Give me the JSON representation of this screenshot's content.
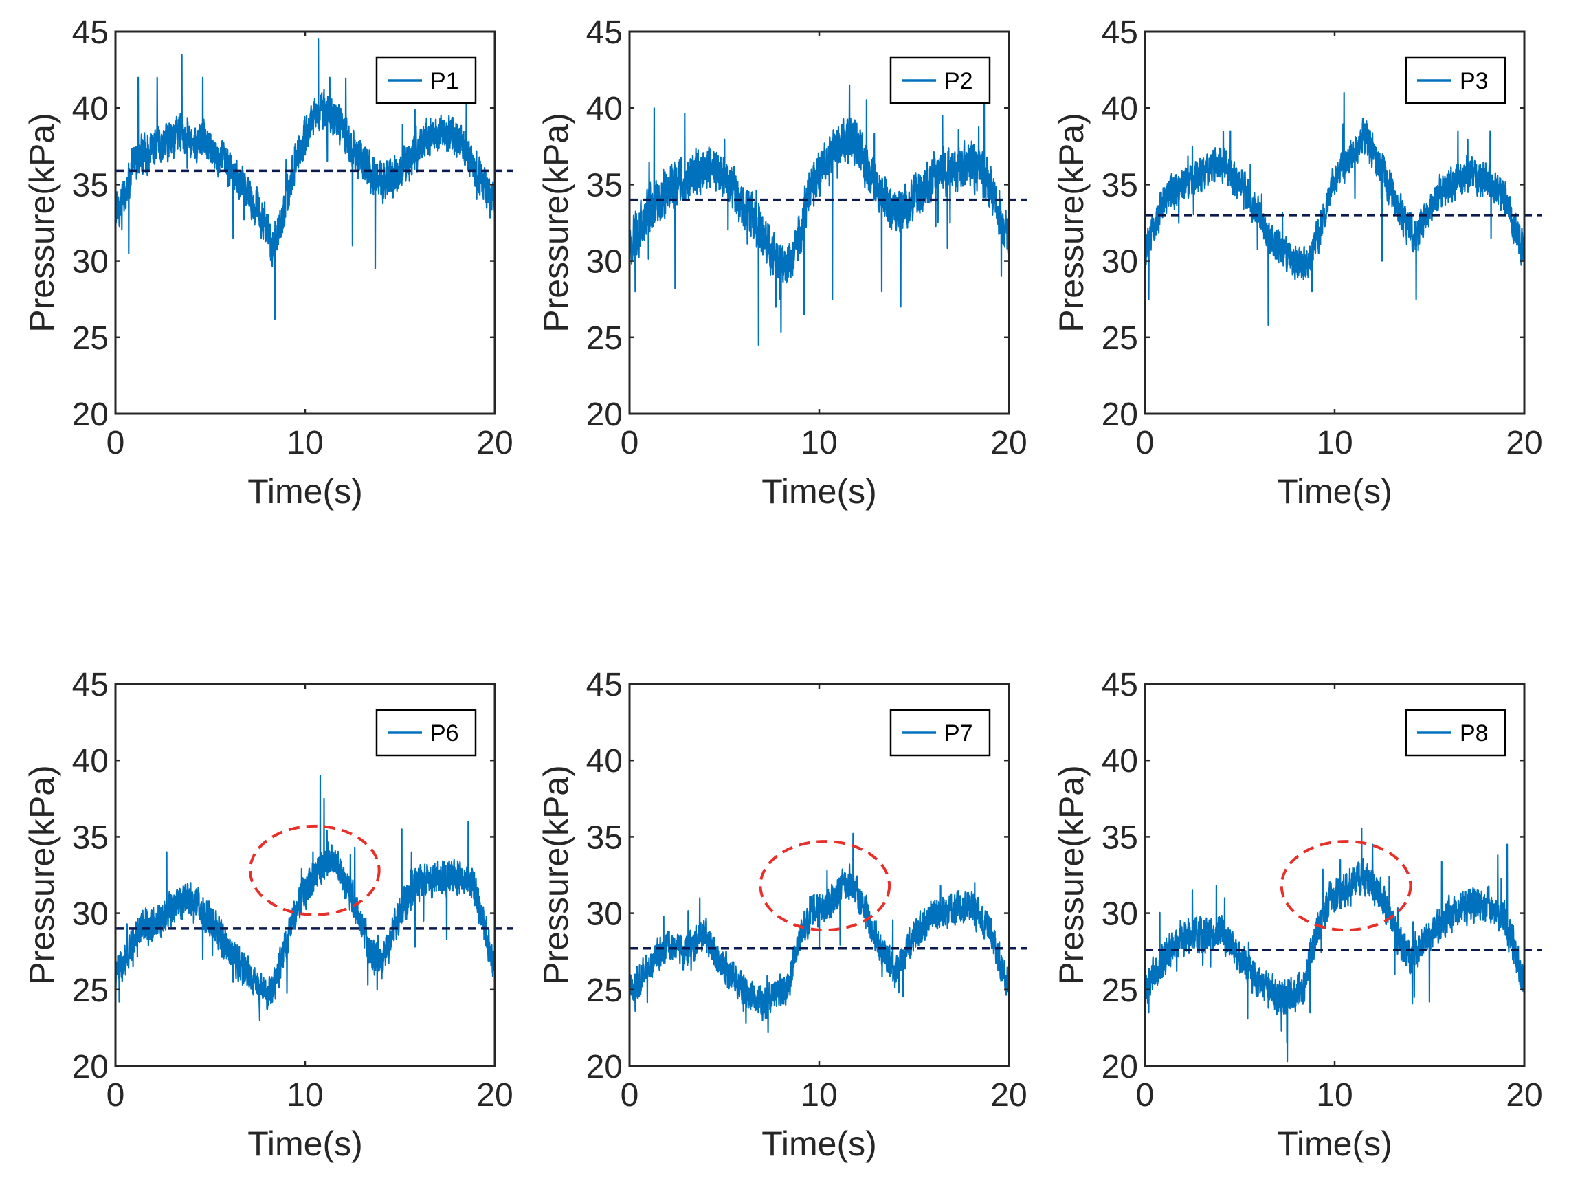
{
  "figure": {
    "background": "#ffffff"
  },
  "colors": {
    "signal": "#0072BD",
    "mean_line": "#0B1A4F",
    "highlight": "#E8302A",
    "axis": "#262626"
  },
  "chart_data": [
    {
      "type": "line",
      "id": "P1",
      "legend": "P1",
      "xlabel": "Time(s)",
      "ylabel": "Pressure(kPa)",
      "xlim": [
        0,
        20
      ],
      "ylim": [
        20,
        45
      ],
      "xticks": [
        0,
        10,
        20
      ],
      "yticks": [
        20,
        25,
        30,
        35,
        40,
        45
      ],
      "legend_position": "top-right",
      "mean_line": 35.9,
      "highlight": null,
      "trend": [
        [
          0,
          33
        ],
        [
          0.5,
          34.5
        ],
        [
          1,
          36.5
        ],
        [
          2,
          37.2
        ],
        [
          3,
          38
        ],
        [
          3.5,
          38.5
        ],
        [
          4,
          38
        ],
        [
          5,
          37.5
        ],
        [
          6,
          36
        ],
        [
          7,
          34.5
        ],
        [
          7.8,
          32.5
        ],
        [
          8.3,
          31
        ],
        [
          8.8,
          33
        ],
        [
          9.5,
          36.5
        ],
        [
          10.5,
          39.5
        ],
        [
          11.3,
          39.8
        ],
        [
          12,
          38.5
        ],
        [
          13,
          36.5
        ],
        [
          14,
          35
        ],
        [
          15,
          36
        ],
        [
          16,
          37.5
        ],
        [
          17,
          38.5
        ],
        [
          18,
          38
        ],
        [
          19,
          36
        ],
        [
          20,
          33.5
        ]
      ],
      "noise_amplitude": 1.7,
      "spikes": [
        [
          3.5,
          43.5
        ],
        [
          1.2,
          42
        ],
        [
          10.7,
          44.5
        ],
        [
          8.4,
          26.2
        ],
        [
          11.3,
          42
        ],
        [
          13.7,
          29.5
        ],
        [
          4.6,
          42
        ],
        [
          0.7,
          30.5
        ],
        [
          18.5,
          41
        ],
        [
          12.5,
          31
        ],
        [
          6.2,
          31.5
        ],
        [
          2.2,
          42
        ]
      ]
    },
    {
      "type": "line",
      "id": "P2",
      "legend": "P2",
      "xlabel": "Time(s)",
      "ylabel": "Pressure(kPa)",
      "xlim": [
        0,
        20
      ],
      "ylim": [
        20,
        45
      ],
      "xticks": [
        0,
        10,
        20
      ],
      "yticks": [
        20,
        25,
        30,
        35,
        40,
        45
      ],
      "legend_position": "top-right",
      "mean_line": 34,
      "highlight": null,
      "trend": [
        [
          0,
          31
        ],
        [
          0.5,
          32
        ],
        [
          1,
          33.5
        ],
        [
          2,
          34.5
        ],
        [
          3,
          35.5
        ],
        [
          4,
          36
        ],
        [
          5,
          35.5
        ],
        [
          6,
          33.5
        ],
        [
          7,
          32
        ],
        [
          7.5,
          30.5
        ],
        [
          8.2,
          29.5
        ],
        [
          8.8,
          31
        ],
        [
          9.5,
          34.5
        ],
        [
          10.5,
          37
        ],
        [
          11.5,
          38
        ],
        [
          12,
          37.5
        ],
        [
          13,
          35
        ],
        [
          14,
          33
        ],
        [
          15,
          34
        ],
        [
          16,
          35.5
        ],
        [
          17,
          36
        ],
        [
          18,
          36.5
        ],
        [
          19,
          35
        ],
        [
          20,
          31
        ]
      ],
      "noise_amplitude": 2.0,
      "spikes": [
        [
          6.8,
          24.5
        ],
        [
          1.3,
          40
        ],
        [
          10.7,
          27.5
        ],
        [
          11.6,
          41.5
        ],
        [
          18.7,
          40.5
        ],
        [
          14.3,
          27
        ],
        [
          9.2,
          26.5
        ],
        [
          0.3,
          28
        ],
        [
          2.4,
          28.2
        ],
        [
          16.5,
          39.5
        ],
        [
          13.3,
          28
        ],
        [
          19.6,
          29
        ]
      ]
    },
    {
      "type": "line",
      "id": "P3",
      "legend": "P3",
      "xlabel": "Time(s)",
      "ylabel": "Pressure(kPa)",
      "xlim": [
        0,
        20
      ],
      "ylim": [
        20,
        45
      ],
      "xticks": [
        0,
        10,
        20
      ],
      "yticks": [
        20,
        25,
        30,
        35,
        40,
        45
      ],
      "legend_position": "top-right",
      "mean_line": 33,
      "highlight": null,
      "trend": [
        [
          0,
          30.5
        ],
        [
          0.5,
          32.5
        ],
        [
          1,
          34
        ],
        [
          2,
          35
        ],
        [
          3,
          35.5
        ],
        [
          4,
          36.5
        ],
        [
          5,
          35
        ],
        [
          6,
          33
        ],
        [
          6.5,
          31.5
        ],
        [
          7.5,
          30.5
        ],
        [
          8.5,
          29.5
        ],
        [
          9.2,
          32
        ],
        [
          10,
          35.5
        ],
        [
          11,
          37
        ],
        [
          11.6,
          38.2
        ],
        [
          12.5,
          36
        ],
        [
          13.5,
          33
        ],
        [
          14.3,
          31.5
        ],
        [
          15,
          33.5
        ],
        [
          16,
          35
        ],
        [
          17,
          35.5
        ],
        [
          18,
          35.5
        ],
        [
          19,
          34
        ],
        [
          20,
          30.5
        ]
      ],
      "noise_amplitude": 1.5,
      "spikes": [
        [
          0.2,
          27.5
        ],
        [
          6.5,
          25.8
        ],
        [
          10.5,
          41
        ],
        [
          14.3,
          27.5
        ],
        [
          4.5,
          38.5
        ],
        [
          16.5,
          38.5
        ],
        [
          2.5,
          37.5
        ],
        [
          12.5,
          30
        ],
        [
          18.2,
          38.5
        ],
        [
          8.8,
          28
        ]
      ]
    },
    {
      "type": "line",
      "id": "P6",
      "legend": "P6",
      "xlabel": "Time(s)",
      "ylabel": "Pressure(kPa)",
      "xlim": [
        0,
        20
      ],
      "ylim": [
        20,
        45
      ],
      "xticks": [
        0,
        10,
        20
      ],
      "yticks": [
        20,
        25,
        30,
        35,
        40,
        45
      ],
      "legend_position": "top-right",
      "mean_line": 29,
      "highlight": {
        "cx": 10.5,
        "cy": 32.8,
        "rx": 3.4,
        "ry": 2.9
      },
      "trend": [
        [
          0,
          26
        ],
        [
          0.5,
          27
        ],
        [
          1,
          28.5
        ],
        [
          2,
          29.5
        ],
        [
          3,
          30.2
        ],
        [
          4,
          31
        ],
        [
          5,
          29.5
        ],
        [
          6,
          27.5
        ],
        [
          7,
          26
        ],
        [
          7.5,
          25
        ],
        [
          8,
          24.5
        ],
        [
          8.6,
          26
        ],
        [
          9.3,
          29.5
        ],
        [
          10,
          31.5
        ],
        [
          10.8,
          33
        ],
        [
          11.5,
          33.8
        ],
        [
          12.5,
          31
        ],
        [
          13.3,
          28
        ],
        [
          14,
          26.5
        ],
        [
          15,
          30
        ],
        [
          16,
          32
        ],
        [
          17,
          32.3
        ],
        [
          18,
          32.5
        ],
        [
          18.8,
          32
        ],
        [
          19.5,
          29
        ],
        [
          20,
          26
        ]
      ],
      "noise_amplitude": 1.5,
      "spikes": [
        [
          10.8,
          39
        ],
        [
          11,
          37.5
        ],
        [
          2.7,
          34
        ],
        [
          15.1,
          35.5
        ],
        [
          18.6,
          36
        ],
        [
          7.6,
          23
        ],
        [
          0.2,
          24.2
        ],
        [
          13.8,
          25
        ],
        [
          6.2,
          25.5
        ],
        [
          4.6,
          27
        ],
        [
          15.8,
          27.8
        ]
      ]
    },
    {
      "type": "line",
      "id": "P7",
      "legend": "P7",
      "xlabel": "Time(s)",
      "ylabel": "Pressure(kPa)",
      "xlim": [
        0,
        20
      ],
      "ylim": [
        20,
        45
      ],
      "xticks": [
        0,
        10,
        20
      ],
      "yticks": [
        20,
        25,
        30,
        35,
        40,
        45
      ],
      "legend_position": "top-right",
      "mean_line": 27.7,
      "highlight": {
        "cx": 10.3,
        "cy": 31.8,
        "rx": 3.4,
        "ry": 2.9
      },
      "trend": [
        [
          0,
          25
        ],
        [
          0.5,
          25.5
        ],
        [
          1,
          26.5
        ],
        [
          2,
          28
        ],
        [
          3,
          27.5
        ],
        [
          4,
          28.5
        ],
        [
          5,
          26.5
        ],
        [
          6,
          25
        ],
        [
          7,
          24
        ],
        [
          7.5,
          24.5
        ],
        [
          8.3,
          25
        ],
        [
          9,
          28.5
        ],
        [
          9.7,
          30.3
        ],
        [
          10.5,
          30.5
        ],
        [
          11.4,
          32
        ],
        [
          12,
          31.5
        ],
        [
          12.8,
          29
        ],
        [
          13.5,
          27
        ],
        [
          14,
          26
        ],
        [
          15,
          28.5
        ],
        [
          16,
          30
        ],
        [
          17,
          30.2
        ],
        [
          18,
          30.5
        ],
        [
          19,
          29
        ],
        [
          20,
          25
        ]
      ],
      "noise_amplitude": 1.4,
      "spikes": [
        [
          7.3,
          22.2
        ],
        [
          3.7,
          31
        ],
        [
          11.6,
          33.2
        ],
        [
          0.3,
          23.6
        ],
        [
          1.8,
          29.8
        ],
        [
          18.2,
          32
        ],
        [
          14.2,
          24.8
        ],
        [
          6,
          23.6
        ],
        [
          10,
          27.8
        ],
        [
          16.4,
          31.8
        ]
      ]
    },
    {
      "type": "line",
      "id": "P8",
      "legend": "P8",
      "xlabel": "Time(s)",
      "ylabel": "Pressure(kPa)",
      "xlim": [
        0,
        20
      ],
      "ylim": [
        20,
        45
      ],
      "xticks": [
        0,
        10,
        20
      ],
      "yticks": [
        20,
        25,
        30,
        35,
        40,
        45
      ],
      "legend_position": "top-right",
      "mean_line": 27.6,
      "highlight": {
        "cx": 10.6,
        "cy": 31.8,
        "rx": 3.4,
        "ry": 2.9
      },
      "trend": [
        [
          0,
          25
        ],
        [
          0.5,
          26
        ],
        [
          1,
          27
        ],
        [
          2,
          28.5
        ],
        [
          3,
          28.5
        ],
        [
          4,
          29
        ],
        [
          5,
          27
        ],
        [
          6,
          25.5
        ],
        [
          7,
          24.5
        ],
        [
          7.5,
          24.5
        ],
        [
          8.3,
          25
        ],
        [
          9,
          28.5
        ],
        [
          9.8,
          31
        ],
        [
          10.5,
          31.5
        ],
        [
          11.6,
          32.5
        ],
        [
          12.5,
          31
        ],
        [
          13.3,
          28.5
        ],
        [
          14,
          27
        ],
        [
          15,
          28.5
        ],
        [
          16,
          30
        ],
        [
          17,
          30.5
        ],
        [
          18,
          30.7
        ],
        [
          19,
          29.5
        ],
        [
          20,
          25.5
        ]
      ],
      "noise_amplitude": 1.5,
      "spikes": [
        [
          7.5,
          20.3
        ],
        [
          12,
          34.5
        ],
        [
          19.1,
          34.5
        ],
        [
          2.5,
          31.5
        ],
        [
          0.2,
          23.5
        ],
        [
          15,
          24.2
        ],
        [
          14.2,
          24.5
        ],
        [
          6.5,
          23.8
        ],
        [
          4.2,
          31
        ],
        [
          10.3,
          33.5
        ],
        [
          18.6,
          33.8
        ],
        [
          8.7,
          23.5
        ]
      ]
    }
  ]
}
